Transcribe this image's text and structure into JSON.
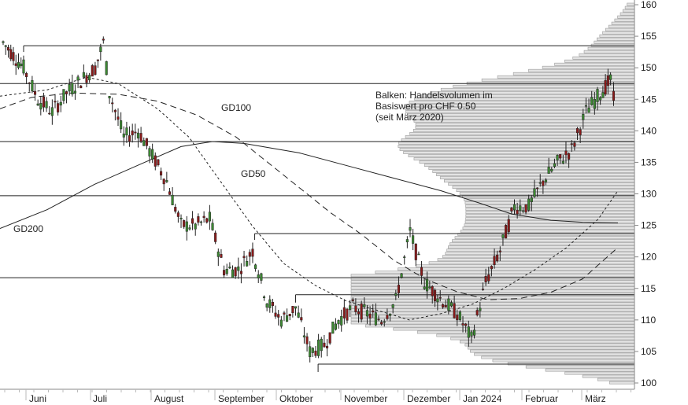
{
  "chart_data": {
    "type": "candlestick",
    "y_axis": {
      "ylim": [
        99,
        161
      ],
      "ticks": [
        100,
        105,
        110,
        115,
        120,
        125,
        130,
        135,
        140,
        145,
        150,
        155,
        160
      ],
      "position": "right"
    },
    "x_axis": {
      "months": [
        "Juni",
        "Juli",
        "August",
        "September",
        "Oktober",
        "November",
        "Dezember",
        "Jan 2024",
        "Februar",
        "März"
      ]
    },
    "annotation_lines": [
      "Balken: Handelsvolumen im",
      "Basiswert pro CHF 0.50",
      "(seit März 2020)"
    ],
    "ma_labels": {
      "gd100": "GD100",
      "gd50": "GD50",
      "gd200": "GD200"
    },
    "horizontal_levels": [
      {
        "price": 153.5,
        "from": "2023-06-05"
      },
      {
        "price": 147.5,
        "from": "start"
      },
      {
        "price": 138.3,
        "from": "start"
      },
      {
        "price": 129.7,
        "from": "start"
      },
      {
        "price": 123.7,
        "from": "2023-09-26"
      },
      {
        "price": 116.7,
        "from": "start"
      },
      {
        "price": 114.0,
        "from": "2023-10-16"
      },
      {
        "price": 103.0,
        "from": "2023-10-27"
      }
    ],
    "ohlc_daily_close": [
      {
        "d": "2023-05-26",
        "c": 154
      },
      {
        "d": "2023-06-05",
        "c": 150
      },
      {
        "d": "2023-06-12",
        "c": 145
      },
      {
        "d": "2023-06-19",
        "c": 143
      },
      {
        "d": "2023-06-26",
        "c": 146
      },
      {
        "d": "2023-07-03",
        "c": 148
      },
      {
        "d": "2023-07-10",
        "c": 150
      },
      {
        "d": "2023-07-14",
        "c": 154
      },
      {
        "d": "2023-07-17",
        "c": 146
      },
      {
        "d": "2023-07-24",
        "c": 139
      },
      {
        "d": "2023-07-31",
        "c": 140
      },
      {
        "d": "2023-08-07",
        "c": 136
      },
      {
        "d": "2023-08-14",
        "c": 132
      },
      {
        "d": "2023-08-21",
        "c": 125
      },
      {
        "d": "2023-08-28",
        "c": 125
      },
      {
        "d": "2023-09-04",
        "c": 126
      },
      {
        "d": "2023-09-11",
        "c": 118
      },
      {
        "d": "2023-09-18",
        "c": 118
      },
      {
        "d": "2023-09-25",
        "c": 121
      },
      {
        "d": "2023-10-02",
        "c": 113
      },
      {
        "d": "2023-10-09",
        "c": 110
      },
      {
        "d": "2023-10-16",
        "c": 112
      },
      {
        "d": "2023-10-23",
        "c": 105
      },
      {
        "d": "2023-10-30",
        "c": 106
      },
      {
        "d": "2023-11-06",
        "c": 110
      },
      {
        "d": "2023-11-13",
        "c": 112
      },
      {
        "d": "2023-11-20",
        "c": 111
      },
      {
        "d": "2023-11-27",
        "c": 110
      },
      {
        "d": "2023-12-04",
        "c": 113
      },
      {
        "d": "2023-12-11",
        "c": 124
      },
      {
        "d": "2023-12-18",
        "c": 116
      },
      {
        "d": "2023-12-27",
        "c": 113
      },
      {
        "d": "2024-01-03",
        "c": 111
      },
      {
        "d": "2024-01-10",
        "c": 107
      },
      {
        "d": "2024-01-17",
        "c": 116
      },
      {
        "d": "2024-01-24",
        "c": 121
      },
      {
        "d": "2024-01-31",
        "c": 128
      },
      {
        "d": "2024-02-07",
        "c": 128
      },
      {
        "d": "2024-02-14",
        "c": 132
      },
      {
        "d": "2024-02-21",
        "c": 135
      },
      {
        "d": "2024-02-28",
        "c": 137
      },
      {
        "d": "2024-03-06",
        "c": 143
      },
      {
        "d": "2024-03-13",
        "c": 146
      },
      {
        "d": "2024-03-18",
        "c": 148
      },
      {
        "d": "2024-03-21",
        "c": 142
      }
    ]
  }
}
